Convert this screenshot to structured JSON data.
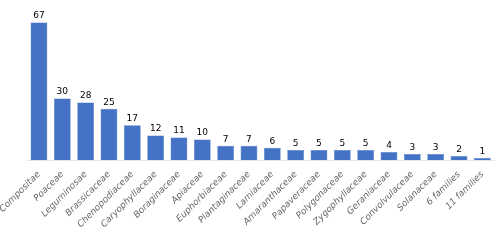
{
  "chart_data": {
    "type": "bar",
    "categories": [
      "Compositae",
      "Poaceae",
      "Leguminosae",
      "Brassicaceae",
      "Chenopodiaceae",
      "Caryophyllaceae",
      "Boraginaceae",
      "Apiaceae",
      "Euphorbiaceae",
      "Plantaginaceae",
      "Lamiaceae",
      "Amaranthaceae",
      "Papaveraceae",
      "Polygonaceae",
      "Zygophyllaceae",
      "Geraniaceae",
      "Convolvulaceae",
      "Solanaceae",
      "6 families",
      "11 families"
    ],
    "values": [
      67,
      30,
      28,
      25,
      17,
      12,
      11,
      10,
      7,
      7,
      6,
      5,
      5,
      5,
      5,
      4,
      3,
      3,
      2,
      1
    ],
    "color": "#4472C4",
    "ylim": [
      0,
      75
    ],
    "data_labels": true,
    "tick_labels": "x",
    "grid": false
  }
}
